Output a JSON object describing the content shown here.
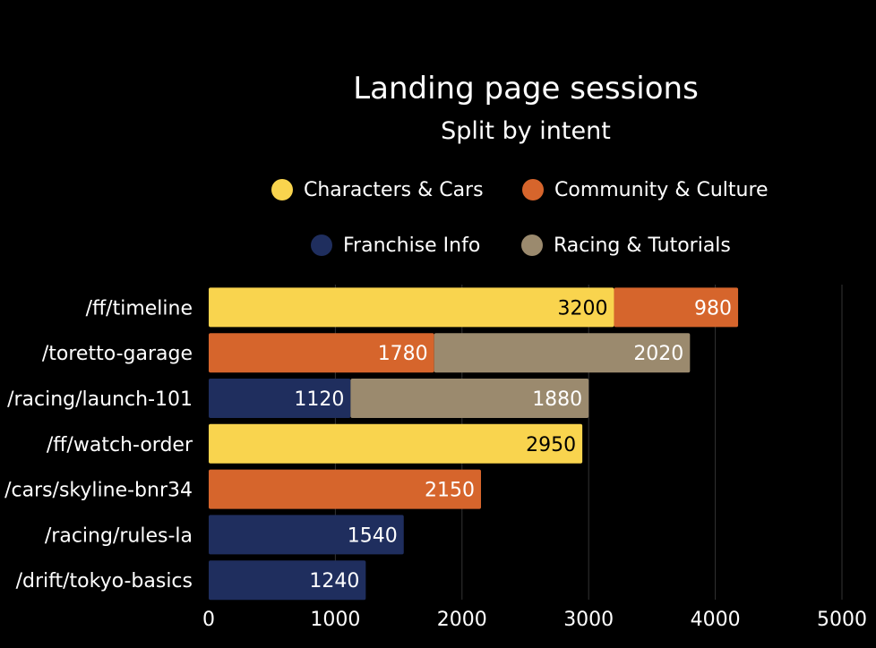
{
  "chart_data": {
    "type": "bar",
    "orientation": "horizontal",
    "stacked": true,
    "title": "Landing page sessions",
    "subtitle": "Split by intent",
    "categories": [
      "/ff/timeline",
      "/toretto-garage",
      "/racing/launch-101",
      "/ff/watch-order",
      "/cars/skyline-bnr34",
      "/racing/rules-la",
      "/drift/tokyo-basics"
    ],
    "series": [
      {
        "name": "Characters & Cars",
        "color": "#F9D44E",
        "label_color": "#000000",
        "values": [
          3200,
          0,
          0,
          2950,
          0,
          0,
          0
        ]
      },
      {
        "name": "Community & Culture",
        "color": "#D6652C",
        "label_color": "#FFFFFF",
        "values": [
          980,
          1780,
          0,
          0,
          2150,
          0,
          0
        ]
      },
      {
        "name": "Franchise Info",
        "color": "#1F2E5E",
        "label_color": "#FFFFFF",
        "values": [
          0,
          0,
          1120,
          0,
          0,
          1540,
          1240
        ]
      },
      {
        "name": "Racing & Tutorials",
        "color": "#9B8A6E",
        "label_color": "#FFFFFF",
        "values": [
          0,
          2020,
          1880,
          0,
          0,
          0,
          0
        ]
      }
    ],
    "segment_order": [
      [
        "Characters & Cars",
        "Community & Culture"
      ],
      [
        "Community & Culture",
        "Racing & Tutorials"
      ],
      [
        "Franchise Info",
        "Racing & Tutorials"
      ],
      [
        "Characters & Cars"
      ],
      [
        "Community & Culture"
      ],
      [
        "Franchise Info"
      ],
      [
        "Franchise Info"
      ]
    ],
    "x_ticks": [
      0,
      1000,
      2000,
      3000,
      4000,
      5000
    ],
    "xlim": [
      0,
      5000
    ],
    "grid": true,
    "legend_position": "top",
    "background": "#000000"
  }
}
